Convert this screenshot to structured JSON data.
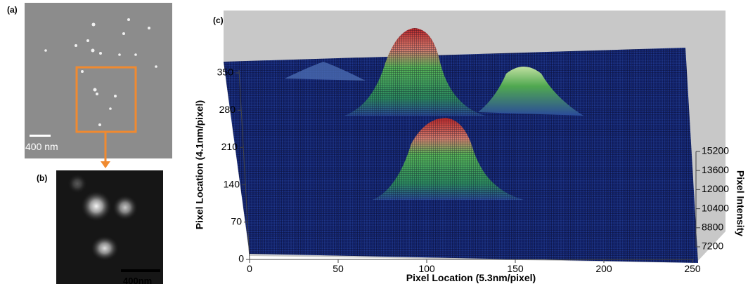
{
  "panels": {
    "a": {
      "label": "(a)",
      "scale_bar": "400 nm"
    },
    "b": {
      "label": "(b)",
      "scale_bar": "400nm"
    },
    "c": {
      "label": "(c)",
      "x_axis": {
        "label": "Pixel Location (5.3nm/pixel)",
        "ticks": [
          0,
          50,
          100,
          150,
          200,
          250
        ]
      },
      "y_axis": {
        "label": "Pixel Location (4.1nm/pixel)",
        "ticks": [
          0,
          70,
          140,
          210,
          280,
          350
        ]
      },
      "z_axis": {
        "label": "Pixel Intensity",
        "ticks": [
          7200,
          8800,
          10400,
          12000,
          13600,
          15200
        ]
      }
    }
  }
}
